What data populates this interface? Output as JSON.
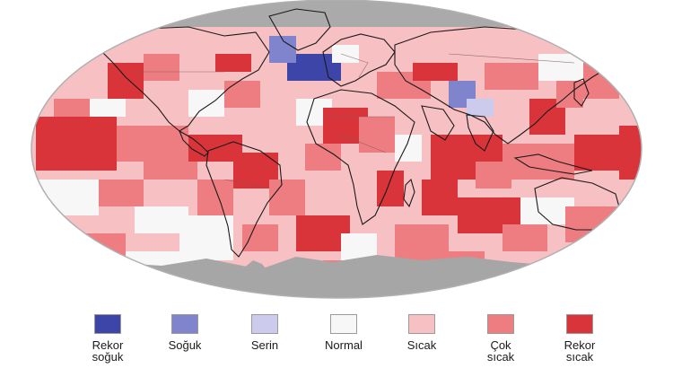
{
  "colors": {
    "ocean_frame": "#b8b8b8",
    "antarctica": "#a6a6a6",
    "no_data": "#aaaaaa",
    "background": "#ffffff",
    "coastline": "#1a1a1a",
    "border": "#7a5a5a"
  },
  "legend": {
    "items": [
      {
        "label": "Rekor\nsoğuk",
        "color": "#3d45a8"
      },
      {
        "label": "Soğuk",
        "color": "#7f84cc"
      },
      {
        "label": "Serin",
        "color": "#cccbee"
      },
      {
        "label": "Normal",
        "color": "#f7f7f7"
      },
      {
        "label": "Sıcak",
        "color": "#f7c0c3"
      },
      {
        "label": "Çok\nsıcak",
        "color": "#ee7d82"
      },
      {
        "label": "Rekor\nsıcak",
        "color": "#d8343a"
      }
    ]
  }
}
